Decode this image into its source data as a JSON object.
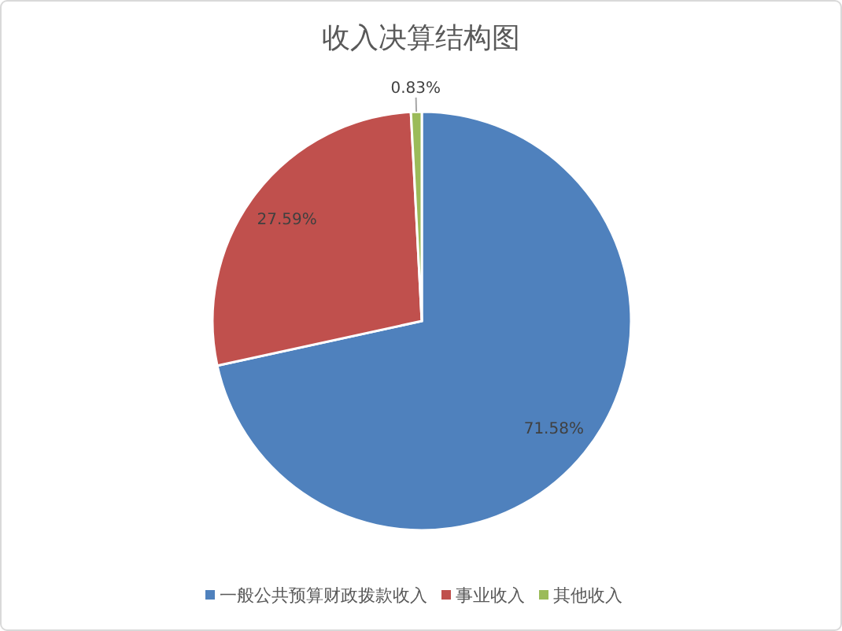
{
  "chart_data": {
    "type": "pie",
    "title": "收入决算结构图",
    "categories": [
      "一般公共预算财政拨款收入",
      "事业收入",
      "其他收入"
    ],
    "values": [
      71.58,
      27.59,
      0.83
    ],
    "colors": [
      "#4f81bd",
      "#c0504d",
      "#9bbb59"
    ],
    "value_labels": [
      "71.58%",
      "27.59%",
      "0.83%"
    ],
    "legend": "bottom"
  }
}
